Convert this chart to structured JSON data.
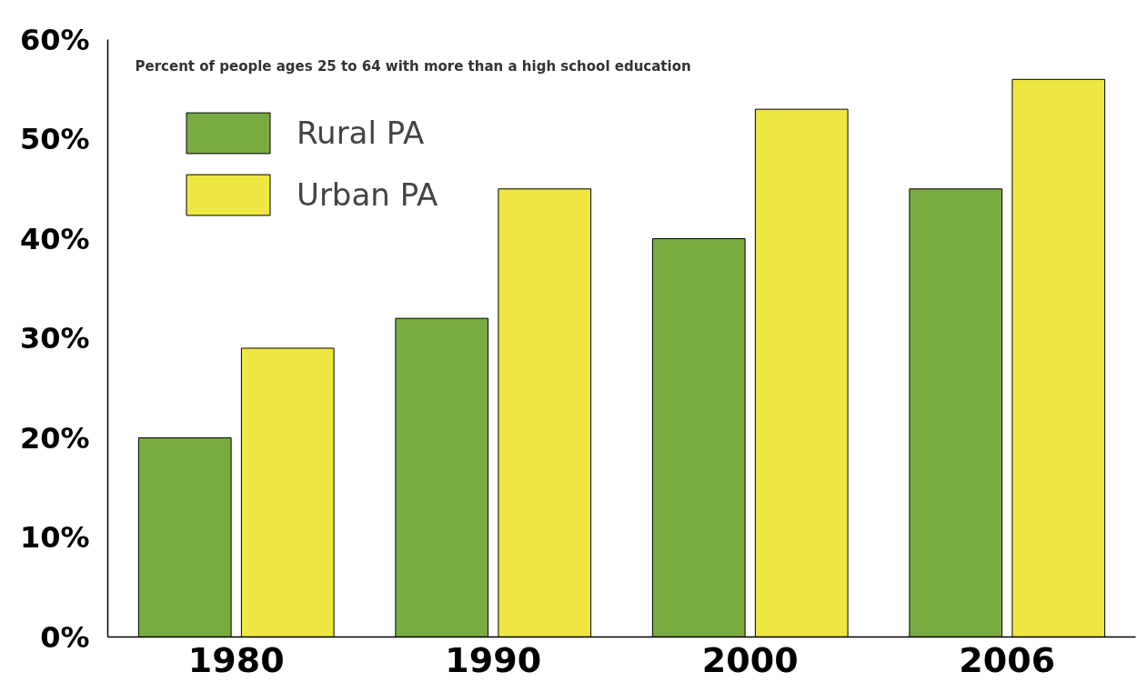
{
  "chart_data": {
    "type": "bar",
    "annotations": [
      "Percent of people ages 25 to 64 with more than a high school education"
    ],
    "categories": [
      "1980",
      "1990",
      "2000",
      "2006"
    ],
    "series": [
      {
        "name": "Rural PA",
        "color": "#7aab41",
        "values": [
          20,
          32,
          40,
          45
        ]
      },
      {
        "name": "Urban PA",
        "color": "#efe741",
        "values": [
          29,
          45,
          53,
          56
        ]
      }
    ],
    "ylim": [
      0,
      60
    ],
    "yticks": [
      {
        "value": 0,
        "label": "0%"
      },
      {
        "value": 10,
        "label": "10%"
      },
      {
        "value": 20,
        "label": "20%"
      },
      {
        "value": 30,
        "label": "30%"
      },
      {
        "value": 40,
        "label": "40%"
      },
      {
        "value": 50,
        "label": "50%"
      },
      {
        "value": 60,
        "label": "60%"
      }
    ],
    "grid": false,
    "legend": "top left"
  }
}
